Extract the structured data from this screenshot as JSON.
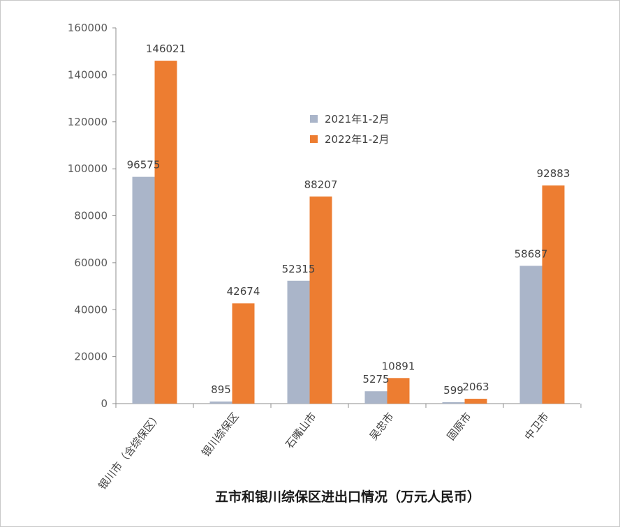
{
  "chart_data": {
    "type": "bar",
    "title": "五市和银川综保区进出口情况（万元人民币）",
    "categories": [
      "银川市（含综保区）",
      "银川综保区",
      "石嘴山市",
      "吴忠市",
      "固原市",
      "中卫市"
    ],
    "series": [
      {
        "name": "2021年1-2月",
        "color": "#aab5c9",
        "values": [
          96575,
          895,
          52315,
          5275,
          599,
          58687
        ]
      },
      {
        "name": "2022年1-2月",
        "color": "#ed7d31",
        "values": [
          146021,
          42674,
          88207,
          10891,
          2063,
          92883
        ]
      }
    ],
    "ylim": [
      0,
      160000
    ],
    "yticks": [
      "0",
      "20000",
      "40000",
      "60000",
      "80000",
      "100000",
      "120000",
      "140000",
      "160000"
    ],
    "grid": false,
    "legend_position": "center-right inside plot"
  }
}
